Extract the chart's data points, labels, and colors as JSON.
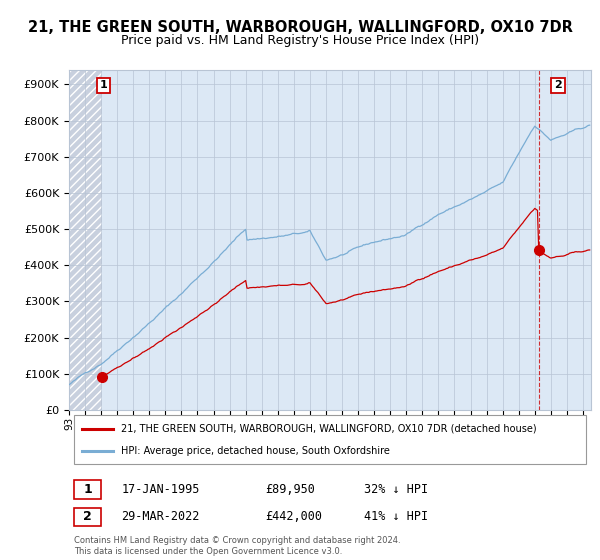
{
  "title": "21, THE GREEN SOUTH, WARBOROUGH, WALLINGFORD, OX10 7DR",
  "subtitle": "Price paid vs. HM Land Registry's House Price Index (HPI)",
  "ytick_values": [
    0,
    100000,
    200000,
    300000,
    400000,
    500000,
    600000,
    700000,
    800000,
    900000
  ],
  "ylim": [
    0,
    940000
  ],
  "xlim_start": 1993.0,
  "xlim_end": 2025.5,
  "sale1_x": 1995.04,
  "sale1_y": 89950,
  "sale1_label": "1",
  "sale2_x": 2022.24,
  "sale2_y": 442000,
  "sale2_label": "2",
  "sale_color": "#cc0000",
  "hpi_color": "#7aadd4",
  "legend_line1": "21, THE GREEN SOUTH, WARBOROUGH, WALLINGFORD, OX10 7DR (detached house)",
  "legend_line2": "HPI: Average price, detached house, South Oxfordshire",
  "table_row1_num": "1",
  "table_row1_date": "17-JAN-1995",
  "table_row1_price": "£89,950",
  "table_row1_hpi": "32% ↓ HPI",
  "table_row2_num": "2",
  "table_row2_date": "29-MAR-2022",
  "table_row2_price": "£442,000",
  "table_row2_hpi": "41% ↓ HPI",
  "footnote": "Contains HM Land Registry data © Crown copyright and database right 2024.\nThis data is licensed under the Open Government Licence v3.0.",
  "bg_hatch_color": "#c8d0de",
  "bg_main_color": "#dce8f5",
  "grid_color": "#b8c4d4",
  "title_fontsize": 10.5,
  "subtitle_fontsize": 9
}
